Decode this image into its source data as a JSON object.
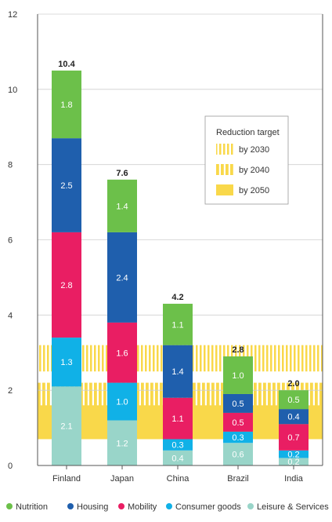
{
  "chart_data": {
    "type": "bar",
    "stacked": true,
    "categories": [
      "Finland",
      "Japan",
      "China",
      "Brazil",
      "India"
    ],
    "totals": [
      "10.4",
      "7.6",
      "4.2",
      "2.8",
      "2.0"
    ],
    "ylim": [
      0,
      12
    ],
    "yticks": [
      "0",
      "2",
      "4",
      "6",
      "8",
      "10",
      "12"
    ],
    "series": [
      {
        "name": "Leisure & Services",
        "color": "#99d5c9",
        "values": [
          2.1,
          1.2,
          0.4,
          0.6,
          0.2
        ]
      },
      {
        "name": "Consumer goods",
        "color": "#10b1e7",
        "values": [
          1.3,
          1.0,
          0.3,
          0.3,
          0.2
        ]
      },
      {
        "name": "Mobility",
        "color": "#e91e63",
        "values": [
          2.8,
          1.6,
          1.1,
          0.5,
          0.7
        ]
      },
      {
        "name": "Housing",
        "color": "#1f5fad",
        "values": [
          2.5,
          2.4,
          1.4,
          0.5,
          0.4
        ]
      },
      {
        "name": "Nutrition",
        "color": "#6cc04a",
        "values": [
          1.8,
          1.4,
          1.1,
          1.0,
          0.5
        ]
      }
    ],
    "reduction_targets": {
      "title": "Reduction target",
      "color": "#f9d84a",
      "items": [
        {
          "label": "by 2030",
          "low": 2.5,
          "high": 3.2,
          "pattern": "fine"
        },
        {
          "label": "by 2040",
          "low": 1.4,
          "high": 2.2,
          "pattern": "coarse"
        },
        {
          "label": "by 2050",
          "low": 0.7,
          "high": 1.6,
          "pattern": "solid"
        }
      ]
    },
    "legend": {
      "position": "bottom",
      "order": [
        "Nutrition",
        "Housing",
        "Mobility",
        "Consumer goods",
        "Leisure & Services"
      ]
    }
  }
}
